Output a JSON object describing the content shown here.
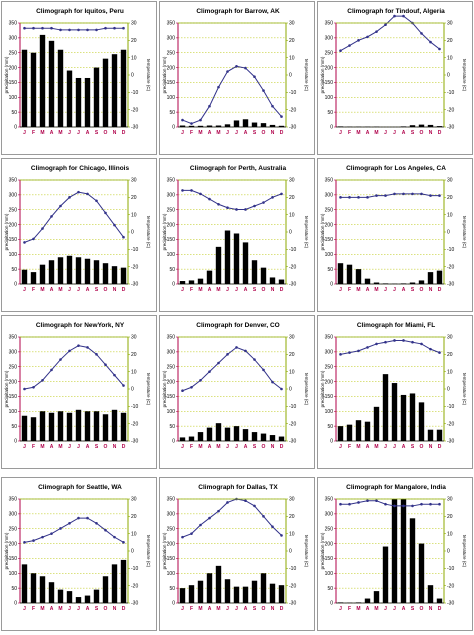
{
  "ui": {
    "colors": {
      "precip_axis": "#b0004a",
      "temp_axis": "#8caa00",
      "bars": "#000000",
      "temp_line": "#33338a",
      "grid": "#b7c400"
    }
  },
  "chart_data": [
    {
      "type": "bar",
      "title": "Climograph for Iquitos, Peru",
      "categories": [
        "J",
        "F",
        "M",
        "A",
        "M",
        "J",
        "J",
        "A",
        "S",
        "O",
        "N",
        "D"
      ],
      "ylabel": "precipitation (mm)",
      "y2label": "temperature (C)",
      "ylim": [
        0,
        350
      ],
      "y2lim": [
        -30,
        30
      ],
      "yticks": [
        0,
        50,
        100,
        150,
        200,
        250,
        300,
        350
      ],
      "y2ticks": [
        -30,
        -20,
        -10,
        0,
        10,
        20,
        30
      ],
      "grid": true,
      "series": [
        {
          "kind": "bar",
          "values": [
            260,
            250,
            310,
            290,
            260,
            190,
            165,
            165,
            200,
            230,
            245,
            260
          ]
        },
        {
          "kind": "line",
          "values": [
            27,
            27,
            27,
            27,
            26,
            26,
            26,
            26,
            26,
            27,
            27,
            27
          ]
        }
      ]
    },
    {
      "type": "bar",
      "title": "Climograph for Barrow, AK",
      "categories": [
        "J",
        "F",
        "M",
        "A",
        "M",
        "J",
        "J",
        "A",
        "S",
        "O",
        "N",
        "D"
      ],
      "ylabel": "precipitation (mm)",
      "y2label": "temperature (C)",
      "ylim": [
        0,
        350
      ],
      "y2lim": [
        -30,
        30
      ],
      "yticks": [
        0,
        50,
        100,
        150,
        200,
        250,
        300,
        350
      ],
      "y2ticks": [
        -30,
        -20,
        -10,
        0,
        10,
        20,
        30
      ],
      "grid": true,
      "series": [
        {
          "kind": "bar",
          "values": [
            5,
            4,
            4,
            5,
            5,
            9,
            22,
            26,
            15,
            13,
            7,
            4
          ]
        },
        {
          "kind": "line",
          "values": [
            -26,
            -28,
            -26,
            -18,
            -7,
            2,
            5,
            4,
            -1,
            -9,
            -18,
            -24
          ]
        }
      ]
    },
    {
      "type": "bar",
      "title": "Climograph for Tindouf, Algeria",
      "categories": [
        "J",
        "F",
        "M",
        "A",
        "M",
        "J",
        "J",
        "A",
        "S",
        "O",
        "N",
        "D"
      ],
      "ylabel": "precipitation (mm)",
      "y2label": "temperature (C)",
      "ylim": [
        0,
        350
      ],
      "y2lim": [
        -30,
        30
      ],
      "yticks": [
        0,
        50,
        100,
        150,
        200,
        250,
        300,
        350
      ],
      "y2ticks": [
        -30,
        -20,
        -10,
        0,
        10,
        20,
        30
      ],
      "grid": true,
      "series": [
        {
          "kind": "bar",
          "values": [
            2,
            1,
            1,
            1,
            1,
            0,
            0,
            2,
            6,
            8,
            7,
            3
          ]
        },
        {
          "kind": "line",
          "values": [
            14,
            17,
            20,
            22,
            25,
            29,
            34,
            34,
            30,
            24,
            19,
            15
          ]
        }
      ]
    },
    {
      "type": "bar",
      "title": "Climograph for Chicago, Illinois",
      "categories": [
        "J",
        "F",
        "M",
        "A",
        "M",
        "J",
        "J",
        "A",
        "S",
        "O",
        "N",
        "D"
      ],
      "ylabel": "precipitation (mm)",
      "y2label": "temperature (C)",
      "ylim": [
        0,
        350
      ],
      "y2lim": [
        -30,
        30
      ],
      "yticks": [
        0,
        50,
        100,
        150,
        200,
        250,
        300,
        350
      ],
      "y2ticks": [
        -30,
        -20,
        -10,
        0,
        10,
        20,
        30
      ],
      "grid": true,
      "series": [
        {
          "kind": "bar",
          "values": [
            48,
            40,
            65,
            80,
            90,
            95,
            90,
            85,
            80,
            70,
            60,
            55
          ]
        },
        {
          "kind": "line",
          "values": [
            -6,
            -4,
            2,
            9,
            15,
            20,
            23,
            22,
            18,
            11,
            4,
            -3
          ]
        }
      ]
    },
    {
      "type": "bar",
      "title": "Climograph for Perth, Australia",
      "categories": [
        "J",
        "F",
        "M",
        "A",
        "M",
        "J",
        "J",
        "A",
        "S",
        "O",
        "N",
        "D"
      ],
      "ylabel": "precipitation (mm)",
      "y2label": "temperature (C)",
      "ylim": [
        0,
        350
      ],
      "y2lim": [
        -30,
        30
      ],
      "yticks": [
        0,
        50,
        100,
        150,
        200,
        250,
        300,
        350
      ],
      "y2ticks": [
        -30,
        -20,
        -10,
        0,
        10,
        20,
        30
      ],
      "grid": true,
      "series": [
        {
          "kind": "bar",
          "values": [
            10,
            12,
            18,
            45,
            125,
            180,
            170,
            140,
            80,
            55,
            22,
            15
          ]
        },
        {
          "kind": "line",
          "values": [
            24,
            24,
            22,
            19,
            16,
            14,
            13,
            13,
            15,
            17,
            20,
            22
          ]
        }
      ]
    },
    {
      "type": "bar",
      "title": "Climograph for Los Angeles, CA",
      "categories": [
        "J",
        "F",
        "M",
        "A",
        "M",
        "J",
        "J",
        "A",
        "S",
        "O",
        "N",
        "D"
      ],
      "ylabel": "precipitation (mm)",
      "y2label": "temperature (C)",
      "ylim": [
        0,
        350
      ],
      "y2lim": [
        -30,
        30
      ],
      "yticks": [
        0,
        50,
        100,
        150,
        200,
        250,
        300,
        350
      ],
      "y2ticks": [
        -30,
        -20,
        -10,
        0,
        10,
        20,
        30
      ],
      "grid": true,
      "series": [
        {
          "kind": "bar",
          "values": [
            70,
            65,
            50,
            18,
            5,
            2,
            1,
            2,
            5,
            12,
            40,
            45
          ]
        },
        {
          "kind": "line",
          "values": [
            20,
            20,
            20,
            20,
            21,
            21,
            22,
            22,
            22,
            22,
            21,
            21
          ]
        }
      ]
    },
    {
      "type": "bar",
      "title": "Climograph for NewYork, NY",
      "categories": [
        "J",
        "F",
        "M",
        "A",
        "M",
        "J",
        "J",
        "A",
        "S",
        "O",
        "N",
        "D"
      ],
      "ylabel": "precipitation (mm)",
      "y2label": "temperature (C)",
      "ylim": [
        0,
        350
      ],
      "y2lim": [
        -30,
        30
      ],
      "yticks": [
        0,
        50,
        100,
        150,
        200,
        250,
        300,
        350
      ],
      "y2ticks": [
        -30,
        -20,
        -10,
        0,
        10,
        20,
        30
      ],
      "grid": true,
      "series": [
        {
          "kind": "bar",
          "values": [
            85,
            80,
            100,
            95,
            100,
            95,
            105,
            100,
            100,
            90,
            105,
            95
          ]
        },
        {
          "kind": "line",
          "values": [
            0,
            1,
            5,
            11,
            17,
            22,
            25,
            24,
            20,
            14,
            8,
            2
          ]
        }
      ]
    },
    {
      "type": "bar",
      "title": "Climograph for Denver, CO",
      "categories": [
        "J",
        "F",
        "M",
        "A",
        "M",
        "J",
        "J",
        "A",
        "S",
        "O",
        "N",
        "D"
      ],
      "ylabel": "precipitation (mm)",
      "y2label": "temperature (C)",
      "ylim": [
        0,
        350
      ],
      "y2lim": [
        -30,
        30
      ],
      "yticks": [
        0,
        50,
        100,
        150,
        200,
        250,
        300,
        350
      ],
      "y2ticks": [
        -30,
        -20,
        -10,
        0,
        10,
        20,
        30
      ],
      "grid": true,
      "series": [
        {
          "kind": "bar",
          "values": [
            12,
            15,
            30,
            45,
            60,
            45,
            50,
            40,
            30,
            25,
            20,
            15
          ]
        },
        {
          "kind": "line",
          "values": [
            -1,
            1,
            5,
            10,
            15,
            20,
            24,
            22,
            17,
            11,
            4,
            0
          ]
        }
      ]
    },
    {
      "type": "bar",
      "title": "Climograph for Miami, FL",
      "categories": [
        "J",
        "F",
        "M",
        "A",
        "M",
        "J",
        "J",
        "A",
        "S",
        "O",
        "N",
        "D"
      ],
      "ylabel": "precipitation (mm)",
      "y2label": "temperature (C)",
      "ylim": [
        0,
        350
      ],
      "y2lim": [
        -30,
        30
      ],
      "yticks": [
        0,
        50,
        100,
        150,
        200,
        250,
        300,
        350
      ],
      "y2ticks": [
        -30,
        -20,
        -10,
        0,
        10,
        20,
        30
      ],
      "grid": true,
      "series": [
        {
          "kind": "bar",
          "values": [
            50,
            55,
            70,
            65,
            115,
            225,
            195,
            155,
            160,
            130,
            38,
            38
          ]
        },
        {
          "kind": "line",
          "values": [
            20,
            21,
            22,
            24,
            26,
            27,
            28,
            28,
            27,
            26,
            23,
            21
          ]
        }
      ]
    },
    {
      "type": "bar",
      "title": "Climograph for Seattle, WA",
      "categories": [
        "J",
        "F",
        "M",
        "A",
        "M",
        "J",
        "J",
        "A",
        "S",
        "O",
        "N",
        "D"
      ],
      "ylabel": "precipitation (mm)",
      "y2label": "temperature (C)",
      "ylim": [
        0,
        350
      ],
      "y2lim": [
        -30,
        30
      ],
      "yticks": [
        0,
        50,
        100,
        150,
        200,
        250,
        300,
        350
      ],
      "y2ticks": [
        -30,
        -20,
        -10,
        0,
        10,
        20,
        30
      ],
      "grid": true,
      "series": [
        {
          "kind": "bar",
          "values": [
            130,
            100,
            90,
            70,
            45,
            40,
            20,
            25,
            45,
            90,
            130,
            145
          ]
        },
        {
          "kind": "line",
          "values": [
            5,
            6,
            8,
            10,
            13,
            16,
            19,
            19,
            16,
            12,
            8,
            5
          ]
        }
      ]
    },
    {
      "type": "bar",
      "title": "Climograph for Dallas, TX",
      "categories": [
        "J",
        "F",
        "M",
        "A",
        "M",
        "J",
        "J",
        "A",
        "S",
        "O",
        "N",
        "D"
      ],
      "ylabel": "precipitation (mm)",
      "y2label": "temperature (C)",
      "ylim": [
        0,
        350
      ],
      "y2lim": [
        -30,
        30
      ],
      "yticks": [
        0,
        50,
        100,
        150,
        200,
        250,
        300,
        350
      ],
      "y2ticks": [
        -30,
        -20,
        -10,
        0,
        10,
        20,
        30
      ],
      "grid": true,
      "series": [
        {
          "kind": "bar",
          "values": [
            50,
            60,
            75,
            100,
            125,
            80,
            55,
            55,
            75,
            100,
            65,
            60
          ]
        },
        {
          "kind": "line",
          "values": [
            8,
            10,
            15,
            19,
            23,
            28,
            30,
            29,
            26,
            20,
            14,
            9
          ]
        }
      ]
    },
    {
      "type": "bar",
      "title": "Climograph for Mangalore, India",
      "categories": [
        "J",
        "F",
        "M",
        "A",
        "M",
        "J",
        "J",
        "A",
        "S",
        "O",
        "N",
        "D"
      ],
      "ylabel": "precipitation (mm)",
      "y2label": "temperature (C)",
      "ylim": [
        0,
        350
      ],
      "y2lim": [
        -30,
        30
      ],
      "yticks": [
        0,
        50,
        100,
        150,
        200,
        250,
        300,
        350
      ],
      "y2ticks": [
        -30,
        -20,
        -10,
        0,
        10,
        20,
        30
      ],
      "grid": true,
      "series": [
        {
          "kind": "bar",
          "values": [
            2,
            1,
            2,
            15,
            40,
            190,
            350,
            350,
            285,
            200,
            60,
            15
          ]
        },
        {
          "kind": "line",
          "values": [
            27,
            27,
            28,
            29,
            29,
            27,
            26,
            26,
            26,
            27,
            27,
            27
          ]
        }
      ]
    }
  ]
}
